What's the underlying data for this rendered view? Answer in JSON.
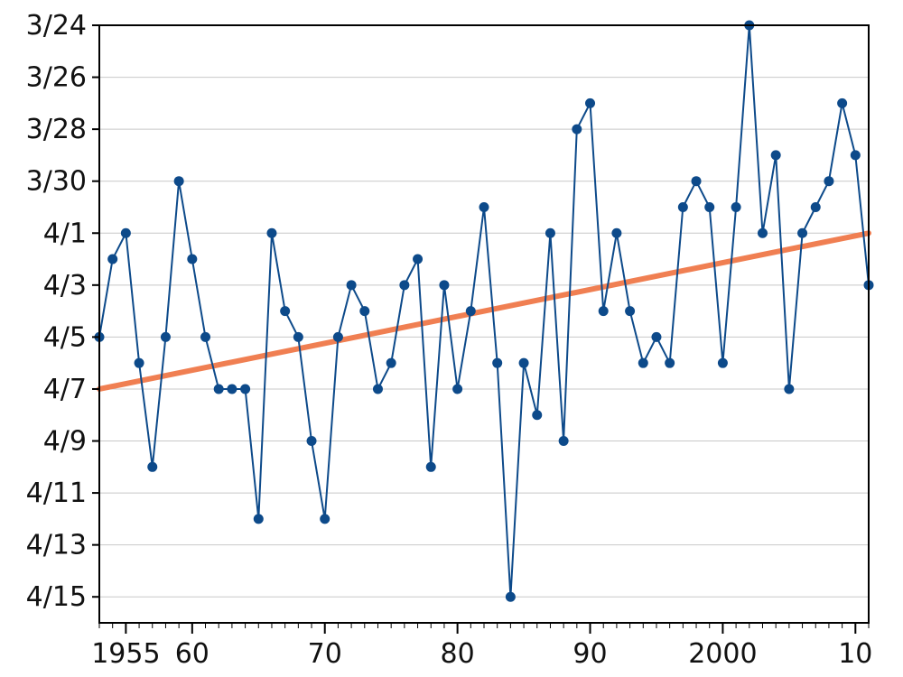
{
  "chart_data": {
    "type": "line",
    "title": "",
    "xlabel": "",
    "ylabel": "",
    "x_tick_labels": [
      "1955",
      "60",
      "70",
      "80",
      "90",
      "2000",
      "10"
    ],
    "x_ticks": [
      1955,
      1960,
      1970,
      1980,
      1990,
      2000,
      2010
    ],
    "y_tick_labels": [
      "3/24",
      "3/26",
      "3/28",
      "3/30",
      "4/1",
      "4/3",
      "4/5",
      "4/7",
      "4/9",
      "4/11",
      "4/13",
      "4/15"
    ],
    "xlim": [
      1953,
      2011
    ],
    "ylim": [
      "3/24",
      "4/16"
    ],
    "grid": "horizontal",
    "series": [
      {
        "color": "#0d4a8a",
        "marker": "circle",
        "x": [
          1953,
          1954,
          1955,
          1956,
          1957,
          1958,
          1959,
          1960,
          1961,
          1962,
          1963,
          1964,
          1965,
          1966,
          1967,
          1968,
          1969,
          1970,
          1971,
          1972,
          1973,
          1974,
          1975,
          1976,
          1977,
          1978,
          1979,
          1980,
          1981,
          1982,
          1983,
          1984,
          1985,
          1986,
          1987,
          1988,
          1989,
          1990,
          1991,
          1992,
          1993,
          1994,
          1995,
          1996,
          1997,
          1998,
          1999,
          2000,
          2001,
          2002,
          2003,
          2004,
          2005,
          2006,
          2007,
          2008,
          2009,
          2010,
          2011
        ],
        "y": [
          "4/5",
          "4/2",
          "4/1",
          "4/6",
          "4/10",
          "4/5",
          "3/30",
          "4/2",
          "4/5",
          "4/7",
          "4/7",
          "4/7",
          "4/12",
          "4/1",
          "4/4",
          "4/5",
          "4/9",
          "4/12",
          "4/5",
          "4/3",
          "4/4",
          "4/7",
          "4/6",
          "4/3",
          "4/2",
          "4/10",
          "4/3",
          "4/7",
          "4/4",
          "3/31",
          "4/6",
          "4/15",
          "4/6",
          "4/8",
          "4/1",
          "4/9",
          "3/28",
          "3/27",
          "4/4",
          "4/1",
          "4/4",
          "4/6",
          "4/5",
          "4/6",
          "3/31",
          "3/30",
          "3/31",
          "4/6",
          "3/31",
          "3/24",
          "4/1",
          "3/29",
          "4/7",
          "4/1",
          "3/31",
          "3/30",
          "3/27",
          "3/29",
          "4/3"
        ]
      },
      {
        "type": "trend",
        "color": "#f07f52",
        "x": [
          1953,
          2011
        ],
        "y": [
          "4/7",
          "4/1"
        ]
      }
    ]
  }
}
